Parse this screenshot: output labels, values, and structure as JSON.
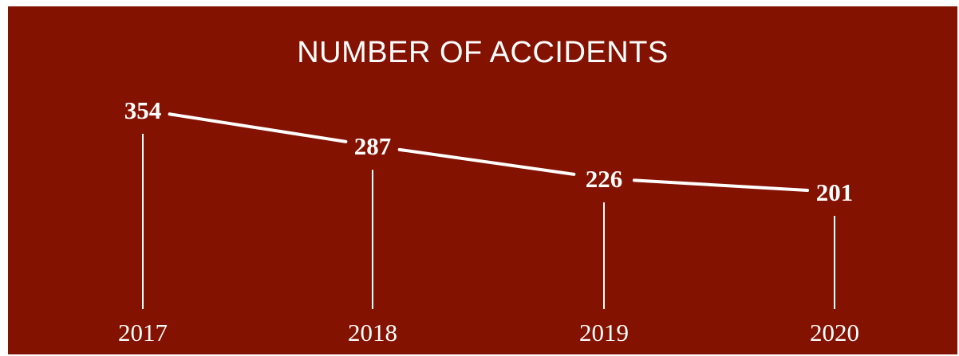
{
  "chart_data": {
    "type": "line",
    "title": "NUMBER OF ACCIDENTS",
    "xlabel": "",
    "ylabel": "",
    "categories": [
      "2017",
      "2018",
      "2019",
      "2020"
    ],
    "values": [
      354,
      287,
      226,
      201
    ],
    "grid": false,
    "legend": "none",
    "colors": {
      "background": "#841200",
      "foreground": "#ffffff"
    }
  }
}
